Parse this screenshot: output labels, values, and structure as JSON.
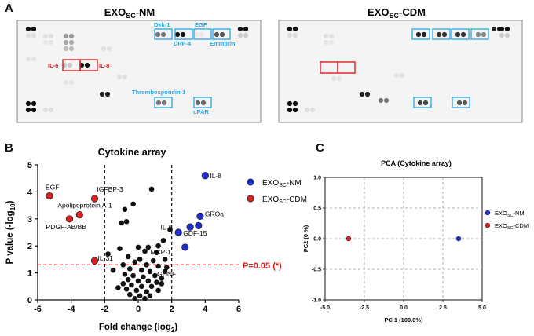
{
  "panels": {
    "a": "A",
    "b": "B",
    "c": "C"
  },
  "blots": {
    "left": {
      "title_main": "EXO",
      "title_sub": "SC",
      "title_suffix": "-NM",
      "labels": {
        "dkk1": "Dkk-1",
        "egf": "EGF",
        "dpp4": "DPP-4",
        "emmprin": "Emmprin",
        "il6": "IL-6",
        "il8": "IL-8",
        "thrombospondin": "Thrombospondin-1",
        "upar": "uPAR"
      }
    },
    "right": {
      "title_main": "EXO",
      "title_sub": "SC",
      "title_suffix": "-CDM"
    },
    "colors": {
      "blue_box": "#29a8e0",
      "red_box": "#e02020"
    }
  },
  "volcano": {
    "threshold_label": "P=0.05 (*)",
    "legend": [
      {
        "main": "EXO",
        "sub": "SC",
        "suffix": "-NM",
        "color": "#1f2fc8"
      },
      {
        "main": "EXO",
        "sub": "SC",
        "suffix": "-CDM",
        "color": "#d42020"
      }
    ]
  },
  "pca": {
    "legend": [
      {
        "main": "EXO",
        "sub": "SC",
        "suffix": "-NM",
        "color": "#1f2fc8"
      },
      {
        "main": "EXO",
        "sub": "SC",
        "suffix": "-CDM",
        "color": "#d42020"
      }
    ]
  },
  "chart_data": [
    {
      "type": "scatter",
      "title": "Cytokine array",
      "xlabel": "Fold change (log",
      "xlabel_sub": "2",
      "xlabel_end": ")",
      "ylabel": "P value (-log",
      "ylabel_sub": "10",
      "ylabel_end": ")",
      "xlim": [
        -6,
        6
      ],
      "ylim": [
        0,
        5
      ],
      "xticks": [
        -6,
        -4,
        -2,
        0,
        2,
        4,
        6
      ],
      "yticks": [
        0,
        1,
        2,
        3,
        4,
        5
      ],
      "vlines": [
        -2,
        2
      ],
      "hline": 1.3,
      "series": [
        {
          "name": "EXO-NM",
          "color": "#1f2fc8",
          "points": [
            {
              "x": 4.0,
              "y": 4.6,
              "label": "IL-8"
            },
            {
              "x": 3.7,
              "y": 3.1,
              "label": "GROa"
            },
            {
              "x": 3.6,
              "y": 2.75,
              "label": ""
            },
            {
              "x": 3.1,
              "y": 2.7,
              "label": ""
            },
            {
              "x": 2.4,
              "y": 2.5,
              "label": "GDF-15"
            },
            {
              "x": 2.8,
              "y": 1.95,
              "label": ""
            }
          ]
        },
        {
          "name": "EXO-CDM",
          "color": "#d42020",
          "points": [
            {
              "x": -5.3,
              "y": 3.85,
              "label": "EGF"
            },
            {
              "x": -2.6,
              "y": 3.75,
              "label": "IGFBP-3"
            },
            {
              "x": -3.5,
              "y": 3.15,
              "label": "Apolipoprotein A-1"
            },
            {
              "x": -4.1,
              "y": 3.0,
              "label": "PDGF-AB/BB"
            },
            {
              "x": -2.6,
              "y": 1.45,
              "label": "IL-31"
            }
          ]
        },
        {
          "name": "other",
          "color": "#111111",
          "points": [
            {
              "x": 0.8,
              "y": 4.1,
              "label": ""
            },
            {
              "x": -0.3,
              "y": 3.55,
              "label": ""
            },
            {
              "x": -0.8,
              "y": 3.35,
              "label": ""
            },
            {
              "x": -0.7,
              "y": 2.9,
              "label": ""
            },
            {
              "x": -1.0,
              "y": 2.85,
              "label": ""
            },
            {
              "x": 1.9,
              "y": 2.6,
              "label": "IL-6"
            },
            {
              "x": 1.5,
              "y": 2.2,
              "label": ""
            },
            {
              "x": 1.2,
              "y": 2.0,
              "label": ""
            },
            {
              "x": 1.1,
              "y": 1.75,
              "label": "MCP-1"
            },
            {
              "x": 0.4,
              "y": 1.8,
              "label": ""
            },
            {
              "x": 1.7,
              "y": 1.2,
              "label": ""
            },
            {
              "x": 1.6,
              "y": 1.05,
              "label": "GDNF"
            },
            {
              "x": 1.4,
              "y": 0.8,
              "label": ""
            },
            {
              "x": -1.8,
              "y": 1.7,
              "label": ""
            },
            {
              "x": -1.5,
              "y": 1.1,
              "label": ""
            },
            {
              "x": -0.9,
              "y": 1.3,
              "label": ""
            },
            {
              "x": -0.6,
              "y": 1.6,
              "label": ""
            },
            {
              "x": -0.2,
              "y": 1.4,
              "label": ""
            },
            {
              "x": 0.1,
              "y": 1.5,
              "label": ""
            },
            {
              "x": 0.5,
              "y": 1.3,
              "label": ""
            },
            {
              "x": 0.9,
              "y": 1.45,
              "label": ""
            },
            {
              "x": 1.2,
              "y": 1.25,
              "label": ""
            },
            {
              "x": -0.5,
              "y": 1.15,
              "label": ""
            },
            {
              "x": 0.2,
              "y": 1.1,
              "label": ""
            },
            {
              "x": 0.7,
              "y": 1.05,
              "label": ""
            },
            {
              "x": -0.8,
              "y": 0.95,
              "label": ""
            },
            {
              "x": -0.3,
              "y": 0.9,
              "label": ""
            },
            {
              "x": 0.3,
              "y": 0.85,
              "label": ""
            },
            {
              "x": 1.0,
              "y": 0.9,
              "label": ""
            },
            {
              "x": -0.6,
              "y": 0.75,
              "label": ""
            },
            {
              "x": 0.0,
              "y": 0.7,
              "label": ""
            },
            {
              "x": 0.6,
              "y": 0.7,
              "label": ""
            },
            {
              "x": 1.1,
              "y": 0.65,
              "label": ""
            },
            {
              "x": -0.9,
              "y": 0.6,
              "label": ""
            },
            {
              "x": -0.4,
              "y": 0.55,
              "label": ""
            },
            {
              "x": 0.2,
              "y": 0.5,
              "label": ""
            },
            {
              "x": 0.8,
              "y": 0.5,
              "label": ""
            },
            {
              "x": -0.7,
              "y": 0.4,
              "label": ""
            },
            {
              "x": -0.1,
              "y": 0.35,
              "label": ""
            },
            {
              "x": 0.5,
              "y": 0.3,
              "label": ""
            },
            {
              "x": 1.2,
              "y": 0.35,
              "label": ""
            },
            {
              "x": -0.5,
              "y": 0.2,
              "label": ""
            },
            {
              "x": 0.1,
              "y": 0.15,
              "label": ""
            },
            {
              "x": 0.7,
              "y": 0.15,
              "label": ""
            },
            {
              "x": -0.2,
              "y": 0.05,
              "label": ""
            },
            {
              "x": 0.4,
              "y": 0.05,
              "label": ""
            },
            {
              "x": 1.4,
              "y": 0.6,
              "label": ""
            },
            {
              "x": -1.2,
              "y": 0.45,
              "label": ""
            },
            {
              "x": 1.6,
              "y": 1.5,
              "label": ""
            },
            {
              "x": -1.1,
              "y": 1.9,
              "label": ""
            },
            {
              "x": 0.0,
              "y": 1.95,
              "label": ""
            },
            {
              "x": 0.6,
              "y": 1.95,
              "label": ""
            }
          ]
        }
      ]
    },
    {
      "type": "scatter",
      "title": "PCA (Cytokine array)",
      "xlabel": "PC 1 (100.0%)",
      "ylabel": "PC2 (0 %)",
      "xlim": [
        -5.0,
        5.0
      ],
      "ylim": [
        -1.0,
        1.0
      ],
      "xticks": [
        "-5.0",
        "-2.5",
        "0.0",
        "2.5",
        "5.0"
      ],
      "yticks": [
        "-1.0",
        "-0.5",
        "0.0",
        "0.5",
        "1.0"
      ],
      "grid": true,
      "series": [
        {
          "name": "EXO-NM",
          "color": "#1f2fc8",
          "points": [
            {
              "x": 3.5,
              "y": 0.0
            }
          ]
        },
        {
          "name": "EXO-CDM",
          "color": "#d42020",
          "points": [
            {
              "x": -3.5,
              "y": 0.0
            }
          ]
        }
      ]
    }
  ]
}
